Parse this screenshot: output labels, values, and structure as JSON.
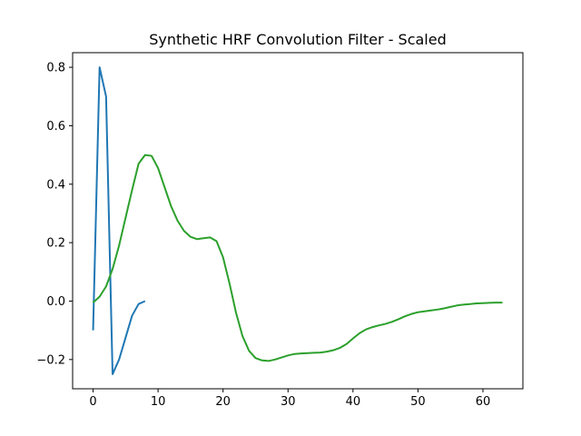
{
  "chart_data": {
    "type": "line",
    "title": "Synthetic HRF Convolution Filter - Scaled",
    "xlabel": "",
    "ylabel": "",
    "xlim": [
      -3.15,
      66.15
    ],
    "ylim": [
      -0.3,
      0.85
    ],
    "x_ticks": [
      0,
      10,
      20,
      30,
      40,
      50,
      60
    ],
    "y_ticks": [
      0.8,
      0.6,
      0.4,
      0.2,
      0.0,
      -0.2
    ],
    "x_tick_labels": [
      "0",
      "10",
      "20",
      "30",
      "40",
      "50",
      "60"
    ],
    "y_tick_labels": [
      "0.8",
      "0.6",
      "0.4",
      "0.2",
      "0.0",
      "−0.2"
    ],
    "grid": false,
    "series": [
      {
        "color": "#1f77b4",
        "x": [
          0,
          1,
          2,
          3,
          4,
          5,
          6,
          7,
          8
        ],
        "values": [
          -0.1,
          0.8,
          0.7,
          -0.25,
          -0.2,
          -0.125,
          -0.05,
          -0.01,
          0.0
        ]
      },
      {
        "color": "#2ca02c",
        "x": [
          0,
          1,
          2,
          3,
          4,
          5,
          6,
          7,
          8,
          9,
          10,
          11,
          12,
          13,
          14,
          15,
          16,
          17,
          18,
          19,
          20,
          21,
          22,
          23,
          24,
          25,
          26,
          27,
          28,
          29,
          30,
          31,
          32,
          33,
          34,
          35,
          36,
          37,
          38,
          39,
          40,
          41,
          42,
          43,
          44,
          45,
          46,
          47,
          48,
          49,
          50,
          51,
          52,
          53,
          54,
          55,
          56,
          57,
          58,
          59,
          60,
          61,
          62,
          63
        ],
        "values": [
          -0.005,
          0.015,
          0.05,
          0.11,
          0.19,
          0.285,
          0.38,
          0.47,
          0.5,
          0.497,
          0.455,
          0.39,
          0.325,
          0.275,
          0.24,
          0.22,
          0.212,
          0.215,
          0.218,
          0.205,
          0.15,
          0.06,
          -0.04,
          -0.12,
          -0.17,
          -0.195,
          -0.203,
          -0.205,
          -0.2,
          -0.193,
          -0.186,
          -0.181,
          -0.179,
          -0.178,
          -0.177,
          -0.176,
          -0.173,
          -0.168,
          -0.16,
          -0.147,
          -0.128,
          -0.11,
          -0.097,
          -0.089,
          -0.083,
          -0.078,
          -0.071,
          -0.062,
          -0.052,
          -0.044,
          -0.038,
          -0.035,
          -0.032,
          -0.029,
          -0.025,
          -0.02,
          -0.015,
          -0.012,
          -0.01,
          -0.008,
          -0.007,
          -0.006,
          -0.005,
          -0.005
        ]
      }
    ]
  }
}
